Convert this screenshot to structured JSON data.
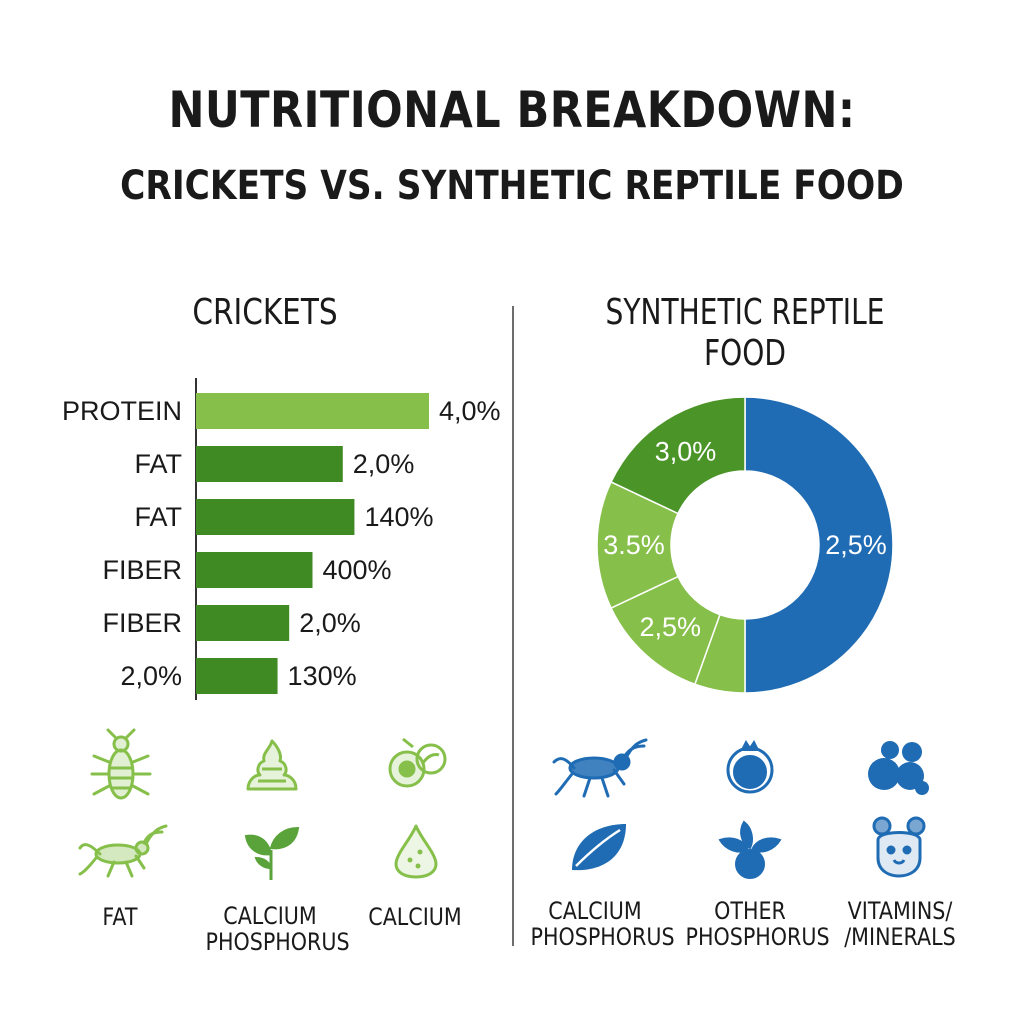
{
  "header": {
    "title": "NUTRITIONAL BREAKDOWN:",
    "subtitle": "CRICKETS VS. SYNTHETIC REPTILE FOOD"
  },
  "colors": {
    "green_light": "#86bf4a",
    "green_mid": "#4f9a2c",
    "green_dark": "#3f8a22",
    "blue": "#1f6cb4",
    "text": "#1a1a1a",
    "divider": "#6d6d6d"
  },
  "chart_data": [
    {
      "type": "bar",
      "orientation": "horizontal",
      "title": "CRICKETS",
      "categories": [
        "PROTEIN",
        "FAT",
        "FAT",
        "FIBER",
        "FIBER",
        "2,0%"
      ],
      "value_labels": [
        "4,0%",
        "2,0%",
        "140%",
        "400%",
        "2,0%",
        "130%"
      ],
      "values": [
        100,
        63,
        68,
        50,
        40,
        35
      ],
      "xlim": [
        0,
        100
      ],
      "grid": false,
      "legend": "none"
    },
    {
      "type": "pie",
      "variant": "donut",
      "title": "SYNTHETIC REPTILE FOOD",
      "slices": [
        {
          "label": "2,5%",
          "value": 50,
          "color": "#1f6cb4"
        },
        {
          "label": "",
          "value": 5.5,
          "color": "#86bf4a"
        },
        {
          "label": "2,5%",
          "value": 12.5,
          "color": "#86bf4a"
        },
        {
          "label": "3.5%",
          "value": 14,
          "color": "#86bf4a"
        },
        {
          "label": "3,0%",
          "value": 18,
          "color": "#4a9428"
        }
      ],
      "legend": "none"
    }
  ],
  "icons": {
    "left": [
      {
        "name": "insect-larva-icon",
        "caption": ""
      },
      {
        "name": "food-pile-icon",
        "caption": ""
      },
      {
        "name": "seeds-icon",
        "caption": ""
      },
      {
        "name": "cricket-icon",
        "caption": "FAT"
      },
      {
        "name": "plant-leaves-icon",
        "caption": "CALCIUM\nPHOSPHORUS"
      },
      {
        "name": "water-drop-icon",
        "caption": "CALCIUM"
      }
    ],
    "right": [
      {
        "name": "cricket-icon",
        "caption": ""
      },
      {
        "name": "berry-icon",
        "caption": ""
      },
      {
        "name": "pellets-icon",
        "caption": ""
      },
      {
        "name": "leaf-icon",
        "caption": "CALCIUM\nPHOSPHORUS"
      },
      {
        "name": "berry-leaves-icon",
        "caption": "OTHER\nPHOSPHORUS"
      },
      {
        "name": "animal-face-icon",
        "caption": "VITAMINS/\n/MINERALS"
      }
    ]
  }
}
